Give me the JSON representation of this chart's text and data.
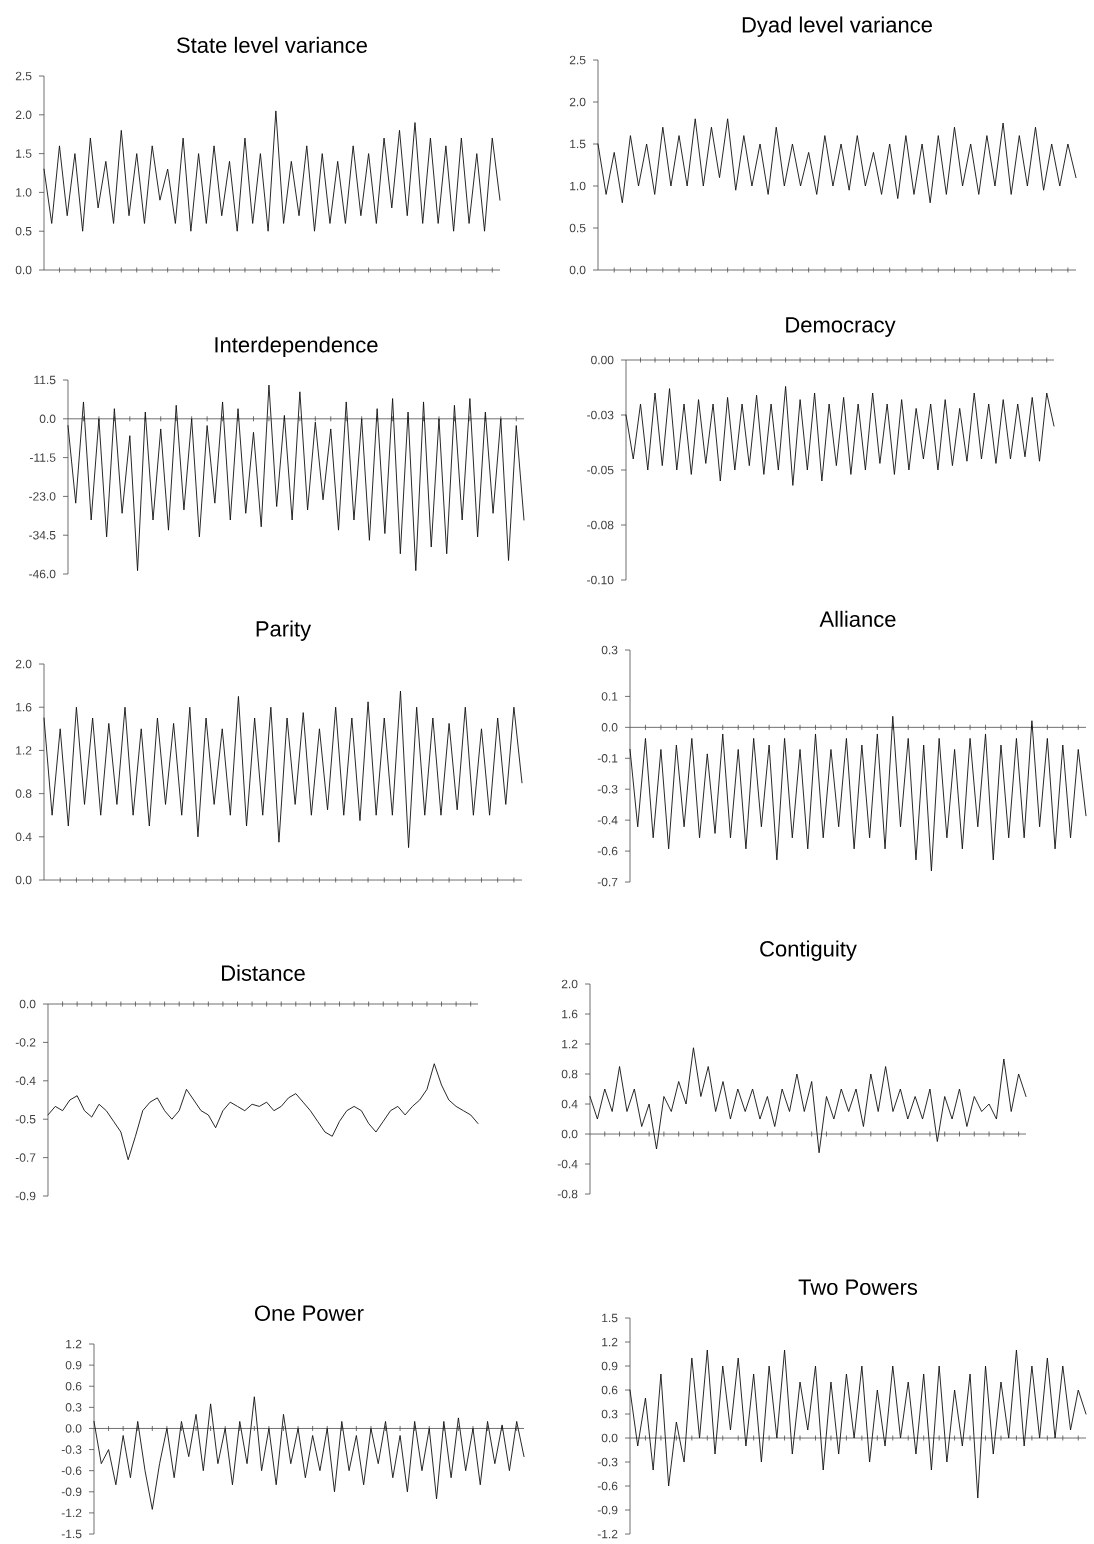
{
  "chart_data": [
    {
      "type": "line",
      "title": "State level variance",
      "categories": [
        null,
        null,
        null,
        null,
        null,
        null,
        null,
        null,
        null,
        null,
        null,
        null,
        null,
        null,
        null,
        null,
        null,
        null,
        null,
        null,
        null,
        null,
        null,
        null,
        null,
        null,
        null,
        null,
        null,
        null,
        null,
        null,
        null,
        null,
        null,
        null,
        null,
        null,
        null,
        null,
        null,
        null,
        null,
        null,
        null,
        null,
        null,
        null,
        null,
        null,
        null,
        null,
        null,
        null,
        null,
        null,
        null,
        null,
        null,
        null
      ],
      "ylim": [
        0,
        2.5
      ],
      "yticks": [
        {
          "value": 0,
          "label": "0.0"
        },
        {
          "value": 0.5,
          "label": "0.5"
        },
        {
          "value": 1,
          "label": "1.0"
        },
        {
          "value": 1.5,
          "label": "1.5"
        },
        {
          "value": 2,
          "label": "2.0"
        },
        {
          "value": 2.5,
          "label": "2.5"
        }
      ],
      "series": [
        {
          "color": "#111111",
          "values": [
            1.3,
            0.6,
            1.6,
            0.7,
            1.5,
            0.5,
            1.7,
            0.8,
            1.4,
            0.6,
            1.8,
            0.7,
            1.5,
            0.6,
            1.6,
            0.9,
            1.3,
            0.6,
            1.7,
            0.5,
            1.5,
            0.6,
            1.6,
            0.7,
            1.4,
            0.5,
            1.7,
            0.6,
            1.5,
            0.5,
            2.05,
            0.6,
            1.4,
            0.7,
            1.6,
            0.5,
            1.5,
            0.6,
            1.4,
            0.6,
            1.6,
            0.7,
            1.5,
            0.6,
            1.7,
            0.8,
            1.8,
            0.7,
            1.9,
            0.6,
            1.7,
            0.6,
            1.6,
            0.5,
            1.7,
            0.6,
            1.5,
            0.5,
            1.7,
            0.9
          ]
        }
      ]
    },
    {
      "type": "line",
      "title": "Dyad level variance",
      "categories": [
        null,
        null,
        null,
        null,
        null,
        null,
        null,
        null,
        null,
        null,
        null,
        null,
        null,
        null,
        null,
        null,
        null,
        null,
        null,
        null,
        null,
        null,
        null,
        null,
        null,
        null,
        null,
        null,
        null,
        null,
        null,
        null,
        null,
        null,
        null,
        null,
        null,
        null,
        null,
        null,
        null,
        null,
        null,
        null,
        null,
        null,
        null,
        null,
        null,
        null,
        null,
        null,
        null,
        null,
        null,
        null,
        null,
        null,
        null,
        null
      ],
      "ylim": [
        0,
        2.5
      ],
      "yticks": [
        {
          "value": 0,
          "label": "0.0"
        },
        {
          "value": 0.5,
          "label": "0.5"
        },
        {
          "value": 1,
          "label": "1.0"
        },
        {
          "value": 1.5,
          "label": "1.5"
        },
        {
          "value": 2,
          "label": "2.0"
        },
        {
          "value": 2.5,
          "label": "2.5"
        }
      ],
      "series": [
        {
          "color": "#111111",
          "values": [
            1.5,
            0.9,
            1.4,
            0.8,
            1.6,
            1.0,
            1.5,
            0.9,
            1.7,
            1.0,
            1.6,
            1.0,
            1.8,
            1.0,
            1.7,
            1.1,
            1.8,
            0.95,
            1.6,
            1.0,
            1.5,
            0.9,
            1.7,
            1.0,
            1.5,
            1.0,
            1.4,
            0.9,
            1.6,
            1.0,
            1.5,
            0.95,
            1.6,
            1.0,
            1.4,
            0.9,
            1.5,
            0.85,
            1.6,
            0.9,
            1.5,
            0.8,
            1.6,
            0.9,
            1.7,
            1.0,
            1.5,
            0.9,
            1.6,
            1.0,
            1.75,
            0.9,
            1.6,
            1.0,
            1.7,
            0.95,
            1.5,
            1.0,
            1.5,
            1.1
          ]
        }
      ]
    },
    {
      "type": "line",
      "title": "Interdependence",
      "categories": [
        null,
        null,
        null,
        null,
        null,
        null,
        null,
        null,
        null,
        null,
        null,
        null,
        null,
        null,
        null,
        null,
        null,
        null,
        null,
        null,
        null,
        null,
        null,
        null,
        null,
        null,
        null,
        null,
        null,
        null,
        null,
        null,
        null,
        null,
        null,
        null,
        null,
        null,
        null,
        null,
        null,
        null,
        null,
        null,
        null,
        null,
        null,
        null,
        null,
        null,
        null,
        null,
        null,
        null,
        null,
        null,
        null,
        null,
        null,
        null
      ],
      "ylim": [
        -46,
        11.5
      ],
      "yticks": [
        {
          "value": -46,
          "label": "-46.0"
        },
        {
          "value": -34.5,
          "label": "-34.5"
        },
        {
          "value": -23,
          "label": "-23.0"
        },
        {
          "value": -11.5,
          "label": "-11.5"
        },
        {
          "value": 0,
          "label": "0.0"
        },
        {
          "value": 11.5,
          "label": "11.5"
        }
      ],
      "series": [
        {
          "color": "#111111",
          "values": [
            -2,
            -25,
            5,
            -30,
            0,
            -35,
            3,
            -28,
            -5,
            -45,
            2,
            -30,
            -3,
            -33,
            4,
            -27,
            0,
            -35,
            -2,
            -25,
            5,
            -30,
            3,
            -28,
            -4,
            -32,
            10,
            -26,
            1,
            -30,
            8,
            -27,
            -1,
            -24,
            -3,
            -33,
            5,
            -30,
            0,
            -36,
            3,
            -34,
            6,
            -40,
            2,
            -45,
            5,
            -38,
            0,
            -40,
            4,
            -30,
            6,
            -35,
            2,
            -28,
            0,
            -42,
            -2,
            -30
          ]
        }
      ]
    },
    {
      "type": "line",
      "title": "Democracy",
      "categories": [
        null,
        null,
        null,
        null,
        null,
        null,
        null,
        null,
        null,
        null,
        null,
        null,
        null,
        null,
        null,
        null,
        null,
        null,
        null,
        null,
        null,
        null,
        null,
        null,
        null,
        null,
        null,
        null,
        null,
        null,
        null,
        null,
        null,
        null,
        null,
        null,
        null,
        null,
        null,
        null,
        null,
        null,
        null,
        null,
        null,
        null,
        null,
        null,
        null,
        null,
        null,
        null,
        null,
        null,
        null,
        null,
        null,
        null,
        null,
        null
      ],
      "ylim": [
        -0.1,
        0
      ],
      "yticks": [
        {
          "value": -0.1,
          "label": "-0.10"
        },
        {
          "value": -0.075,
          "label": "-0.08"
        },
        {
          "value": -0.05,
          "label": "-0.05"
        },
        {
          "value": -0.025,
          "label": "-0.03"
        },
        {
          "value": 0,
          "label": "0.00"
        }
      ],
      "series": [
        {
          "color": "#111111",
          "values": [
            -0.025,
            -0.045,
            -0.02,
            -0.05,
            -0.015,
            -0.048,
            -0.013,
            -0.05,
            -0.02,
            -0.052,
            -0.018,
            -0.047,
            -0.02,
            -0.055,
            -0.017,
            -0.05,
            -0.02,
            -0.048,
            -0.016,
            -0.052,
            -0.02,
            -0.05,
            -0.012,
            -0.057,
            -0.018,
            -0.05,
            -0.015,
            -0.055,
            -0.02,
            -0.048,
            -0.017,
            -0.052,
            -0.02,
            -0.05,
            -0.015,
            -0.047,
            -0.02,
            -0.052,
            -0.018,
            -0.05,
            -0.022,
            -0.045,
            -0.02,
            -0.05,
            -0.018,
            -0.048,
            -0.022,
            -0.046,
            -0.015,
            -0.045,
            -0.02,
            -0.047,
            -0.018,
            -0.045,
            -0.02,
            -0.044,
            -0.017,
            -0.046,
            -0.015,
            -0.03
          ]
        }
      ]
    },
    {
      "type": "line",
      "title": "Parity",
      "categories": [
        null,
        null,
        null,
        null,
        null,
        null,
        null,
        null,
        null,
        null,
        null,
        null,
        null,
        null,
        null,
        null,
        null,
        null,
        null,
        null,
        null,
        null,
        null,
        null,
        null,
        null,
        null,
        null,
        null,
        null,
        null,
        null,
        null,
        null,
        null,
        null,
        null,
        null,
        null,
        null,
        null,
        null,
        null,
        null,
        null,
        null,
        null,
        null,
        null,
        null,
        null,
        null,
        null,
        null,
        null,
        null,
        null,
        null,
        null,
        null
      ],
      "ylim": [
        0,
        2
      ],
      "yticks": [
        {
          "value": 0,
          "label": "0.0"
        },
        {
          "value": 0.4,
          "label": "0.4"
        },
        {
          "value": 0.8,
          "label": "0.8"
        },
        {
          "value": 1.2,
          "label": "1.2"
        },
        {
          "value": 1.6,
          "label": "1.6"
        },
        {
          "value": 2,
          "label": "2.0"
        }
      ],
      "series": [
        {
          "color": "#111111",
          "values": [
            1.5,
            0.6,
            1.4,
            0.5,
            1.6,
            0.7,
            1.5,
            0.6,
            1.45,
            0.7,
            1.6,
            0.6,
            1.4,
            0.5,
            1.5,
            0.7,
            1.45,
            0.6,
            1.6,
            0.4,
            1.5,
            0.7,
            1.4,
            0.6,
            1.7,
            0.5,
            1.5,
            0.6,
            1.6,
            0.35,
            1.5,
            0.7,
            1.55,
            0.6,
            1.4,
            0.65,
            1.6,
            0.6,
            1.5,
            0.55,
            1.65,
            0.6,
            1.5,
            0.6,
            1.75,
            0.3,
            1.6,
            0.6,
            1.5,
            0.6,
            1.45,
            0.65,
            1.6,
            0.6,
            1.4,
            0.6,
            1.5,
            0.7,
            1.6,
            0.9
          ]
        }
      ]
    },
    {
      "type": "line",
      "title": "Alliance",
      "categories": [
        null,
        null,
        null,
        null,
        null,
        null,
        null,
        null,
        null,
        null,
        null,
        null,
        null,
        null,
        null,
        null,
        null,
        null,
        null,
        null,
        null,
        null,
        null,
        null,
        null,
        null,
        null,
        null,
        null,
        null,
        null,
        null,
        null,
        null,
        null,
        null,
        null,
        null,
        null,
        null,
        null,
        null,
        null,
        null,
        null,
        null,
        null,
        null,
        null,
        null,
        null,
        null,
        null,
        null,
        null,
        null,
        null,
        null,
        null,
        null
      ],
      "ylim": [
        -0.7,
        0.35
      ],
      "yticks": [
        {
          "value": -0.7,
          "label": "-0.7"
        },
        {
          "value": -0.56,
          "label": "-0.6"
        },
        {
          "value": -0.42,
          "label": "-0.4"
        },
        {
          "value": -0.28,
          "label": "-0.3"
        },
        {
          "value": -0.14,
          "label": "-0.1"
        },
        {
          "value": 0,
          "label": "0.0"
        },
        {
          "value": 0.14,
          "label": "0.1"
        },
        {
          "value": 0.35,
          "label": "0.3"
        }
      ],
      "series": [
        {
          "color": "#111111",
          "values": [
            -0.1,
            -0.45,
            -0.05,
            -0.5,
            -0.1,
            -0.55,
            -0.08,
            -0.45,
            -0.05,
            -0.5,
            -0.12,
            -0.48,
            -0.03,
            -0.5,
            -0.1,
            -0.55,
            -0.05,
            -0.45,
            -0.08,
            -0.6,
            -0.05,
            -0.5,
            -0.1,
            -0.55,
            -0.03,
            -0.5,
            -0.1,
            -0.45,
            -0.05,
            -0.55,
            -0.08,
            -0.5,
            -0.03,
            -0.55,
            0.05,
            -0.45,
            -0.05,
            -0.6,
            -0.08,
            -0.65,
            -0.05,
            -0.5,
            -0.1,
            -0.55,
            -0.05,
            -0.45,
            -0.03,
            -0.6,
            -0.08,
            -0.5,
            -0.05,
            -0.5,
            0.03,
            -0.45,
            -0.05,
            -0.55,
            -0.08,
            -0.5,
            -0.1,
            -0.4
          ]
        }
      ]
    },
    {
      "type": "line",
      "title": "Distance",
      "categories": [
        null,
        null,
        null,
        null,
        null,
        null,
        null,
        null,
        null,
        null,
        null,
        null,
        null,
        null,
        null,
        null,
        null,
        null,
        null,
        null,
        null,
        null,
        null,
        null,
        null,
        null,
        null,
        null,
        null,
        null,
        null,
        null,
        null,
        null,
        null,
        null,
        null,
        null,
        null,
        null,
        null,
        null,
        null,
        null,
        null,
        null,
        null,
        null,
        null,
        null,
        null,
        null,
        null,
        null,
        null,
        null,
        null,
        null,
        null,
        null
      ],
      "ylim": [
        -0.9,
        0
      ],
      "yticks": [
        {
          "value": -0.9,
          "label": "-0.9"
        },
        {
          "value": -0.72,
          "label": "-0.7"
        },
        {
          "value": -0.54,
          "label": "-0.5"
        },
        {
          "value": -0.36,
          "label": "-0.4"
        },
        {
          "value": -0.18,
          "label": "-0.2"
        },
        {
          "value": 0,
          "label": "0.0"
        }
      ],
      "series": [
        {
          "color": "#111111",
          "values": [
            -0.52,
            -0.48,
            -0.5,
            -0.45,
            -0.43,
            -0.5,
            -0.53,
            -0.47,
            -0.5,
            -0.55,
            -0.6,
            -0.73,
            -0.62,
            -0.5,
            -0.46,
            -0.44,
            -0.5,
            -0.54,
            -0.5,
            -0.4,
            -0.45,
            -0.5,
            -0.52,
            -0.58,
            -0.5,
            -0.46,
            -0.48,
            -0.5,
            -0.47,
            -0.48,
            -0.46,
            -0.5,
            -0.48,
            -0.44,
            -0.42,
            -0.46,
            -0.5,
            -0.55,
            -0.6,
            -0.62,
            -0.55,
            -0.5,
            -0.48,
            -0.5,
            -0.56,
            -0.6,
            -0.55,
            -0.5,
            -0.48,
            -0.52,
            -0.48,
            -0.45,
            -0.4,
            -0.28,
            -0.38,
            -0.45,
            -0.48,
            -0.5,
            -0.52,
            -0.56
          ]
        }
      ]
    },
    {
      "type": "line",
      "title": "Contiguity",
      "categories": [
        null,
        null,
        null,
        null,
        null,
        null,
        null,
        null,
        null,
        null,
        null,
        null,
        null,
        null,
        null,
        null,
        null,
        null,
        null,
        null,
        null,
        null,
        null,
        null,
        null,
        null,
        null,
        null,
        null,
        null,
        null,
        null,
        null,
        null,
        null,
        null,
        null,
        null,
        null,
        null,
        null,
        null,
        null,
        null,
        null,
        null,
        null,
        null,
        null,
        null,
        null,
        null,
        null,
        null,
        null,
        null,
        null,
        null,
        null,
        null
      ],
      "ylim": [
        -0.8,
        2
      ],
      "yticks": [
        {
          "value": -0.8,
          "label": "-0.8"
        },
        {
          "value": -0.4,
          "label": "-0.4"
        },
        {
          "value": 0,
          "label": "0.0"
        },
        {
          "value": 0.4,
          "label": "0.4"
        },
        {
          "value": 0.8,
          "label": "0.8"
        },
        {
          "value": 1.2,
          "label": "1.2"
        },
        {
          "value": 1.6,
          "label": "1.6"
        },
        {
          "value": 2,
          "label": "2.0"
        }
      ],
      "series": [
        {
          "color": "#111111",
          "values": [
            0.5,
            0.2,
            0.6,
            0.3,
            0.9,
            0.3,
            0.6,
            0.1,
            0.4,
            -0.2,
            0.5,
            0.3,
            0.7,
            0.4,
            1.15,
            0.5,
            0.9,
            0.3,
            0.7,
            0.2,
            0.6,
            0.3,
            0.6,
            0.2,
            0.5,
            0.1,
            0.6,
            0.3,
            0.8,
            0.3,
            0.7,
            -0.25,
            0.5,
            0.2,
            0.6,
            0.3,
            0.6,
            0.1,
            0.8,
            0.3,
            0.9,
            0.3,
            0.6,
            0.2,
            0.5,
            0.2,
            0.6,
            -0.1,
            0.5,
            0.2,
            0.6,
            0.1,
            0.5,
            0.3,
            0.4,
            0.2,
            1.0,
            0.3,
            0.8,
            0.5
          ]
        }
      ]
    },
    {
      "type": "line",
      "title": "One Power",
      "categories": [
        null,
        null,
        null,
        null,
        null,
        null,
        null,
        null,
        null,
        null,
        null,
        null,
        null,
        null,
        null,
        null,
        null,
        null,
        null,
        null,
        null,
        null,
        null,
        null,
        null,
        null,
        null,
        null,
        null,
        null,
        null,
        null,
        null,
        null,
        null,
        null,
        null,
        null,
        null,
        null,
        null,
        null,
        null,
        null,
        null,
        null,
        null,
        null,
        null,
        null,
        null,
        null,
        null,
        null,
        null,
        null,
        null,
        null,
        null,
        null
      ],
      "ylim": [
        -1.5,
        1.2
      ],
      "yticks": [
        {
          "value": -1.5,
          "label": "-1.5"
        },
        {
          "value": -1.2,
          "label": "-1.2"
        },
        {
          "value": -0.9,
          "label": "-0.9"
        },
        {
          "value": -0.6,
          "label": "-0.6"
        },
        {
          "value": -0.3,
          "label": "-0.3"
        },
        {
          "value": 0,
          "label": "0.0"
        },
        {
          "value": 0.3,
          "label": "0.3"
        },
        {
          "value": 0.6,
          "label": "0.6"
        },
        {
          "value": 0.9,
          "label": "0.9"
        },
        {
          "value": 1.2,
          "label": "1.2"
        }
      ],
      "series": [
        {
          "color": "#111111",
          "values": [
            0.1,
            -0.5,
            -0.3,
            -0.8,
            -0.1,
            -0.7,
            0.1,
            -0.6,
            -1.15,
            -0.5,
            0.0,
            -0.7,
            0.1,
            -0.4,
            0.2,
            -0.6,
            0.35,
            -0.5,
            0.0,
            -0.8,
            0.1,
            -0.5,
            0.45,
            -0.6,
            0.0,
            -0.8,
            0.2,
            -0.5,
            0.0,
            -0.7,
            -0.1,
            -0.6,
            0.0,
            -0.9,
            0.1,
            -0.6,
            -0.1,
            -0.8,
            0.0,
            -0.5,
            0.1,
            -0.7,
            -0.1,
            -0.9,
            0.1,
            -0.6,
            0.0,
            -1.0,
            0.1,
            -0.7,
            0.15,
            -0.6,
            0.0,
            -0.8,
            0.1,
            -0.5,
            0.05,
            -0.6,
            0.1,
            -0.4
          ]
        }
      ]
    },
    {
      "type": "line",
      "title": "Two Powers",
      "categories": [
        null,
        null,
        null,
        null,
        null,
        null,
        null,
        null,
        null,
        null,
        null,
        null,
        null,
        null,
        null,
        null,
        null,
        null,
        null,
        null,
        null,
        null,
        null,
        null,
        null,
        null,
        null,
        null,
        null,
        null,
        null,
        null,
        null,
        null,
        null,
        null,
        null,
        null,
        null,
        null,
        null,
        null,
        null,
        null,
        null,
        null,
        null,
        null,
        null,
        null,
        null,
        null,
        null,
        null,
        null,
        null,
        null,
        null,
        null,
        null
      ],
      "ylim": [
        -1.2,
        1.5
      ],
      "yticks": [
        {
          "value": -1.2,
          "label": "-1.2"
        },
        {
          "value": -0.9,
          "label": "-0.9"
        },
        {
          "value": -0.6,
          "label": "-0.6"
        },
        {
          "value": -0.3,
          "label": "-0.3"
        },
        {
          "value": 0,
          "label": "0.0"
        },
        {
          "value": 0.3,
          "label": "0.3"
        },
        {
          "value": 0.6,
          "label": "0.6"
        },
        {
          "value": 0.9,
          "label": "0.9"
        },
        {
          "value": 1.2,
          "label": "1.2"
        },
        {
          "value": 1.5,
          "label": "1.5"
        }
      ],
      "series": [
        {
          "color": "#111111",
          "values": [
            0.6,
            -0.1,
            0.5,
            -0.4,
            0.8,
            -0.6,
            0.2,
            -0.3,
            1.0,
            0.0,
            1.1,
            -0.2,
            0.9,
            0.1,
            1.0,
            -0.1,
            0.8,
            -0.3,
            0.9,
            0.0,
            1.1,
            -0.2,
            0.7,
            0.1,
            0.9,
            -0.4,
            0.7,
            -0.2,
            0.8,
            0.0,
            0.9,
            -0.3,
            0.6,
            -0.1,
            0.9,
            0.0,
            0.7,
            -0.2,
            0.8,
            -0.4,
            0.9,
            -0.3,
            0.6,
            -0.1,
            0.8,
            -0.75,
            0.9,
            -0.2,
            0.7,
            0.0,
            1.1,
            -0.1,
            0.9,
            0.0,
            1.0,
            0.0,
            0.9,
            0.1,
            0.6,
            0.3
          ]
        }
      ]
    }
  ]
}
